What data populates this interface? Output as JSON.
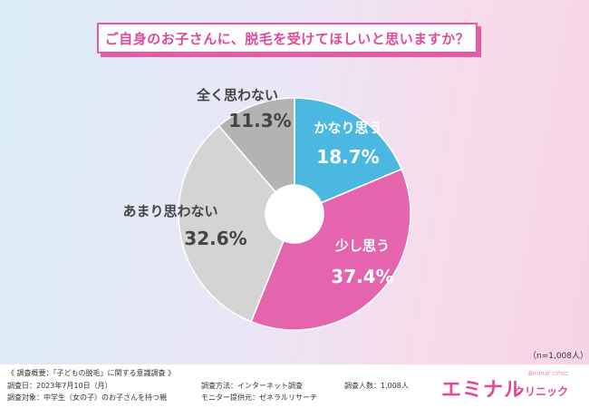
{
  "title": "ご自身のお子さんに、脱毛を受けてほしいと思いますか？",
  "chart_data": {
    "type": "pie",
    "donut": true,
    "title": "ご自身のお子さんに、脱毛を受けてほしいと思いますか？",
    "categories": [
      "かなり思う",
      "少し思う",
      "あまり思わない",
      "全く思わない"
    ],
    "values": [
      18.7,
      37.4,
      32.6,
      11.3
    ],
    "value_labels": [
      "18.7%",
      "37.4%",
      "32.6%",
      "11.3%"
    ],
    "colors": [
      "#4ab8e0",
      "#e464ae",
      "#d4d4d4",
      "#b3b3b3"
    ]
  },
  "sample_note": "（n=1,008人）",
  "survey": {
    "heading": "《 調査概要：「子どもの脱毛」に関する意識調査 》",
    "date": "調査日：2023年7月10日（月）",
    "target": "調査対象：中学生（女の子）のお子さんを持つ親",
    "method": "調査方法：インターネット調査",
    "monitor": "モニター提供元：ゼネラルリサーチ",
    "count": "調査人数：1,008人"
  },
  "logo": {
    "main": "エミナル",
    "sub": "クリニック",
    "en": "Eminal clinic"
  }
}
